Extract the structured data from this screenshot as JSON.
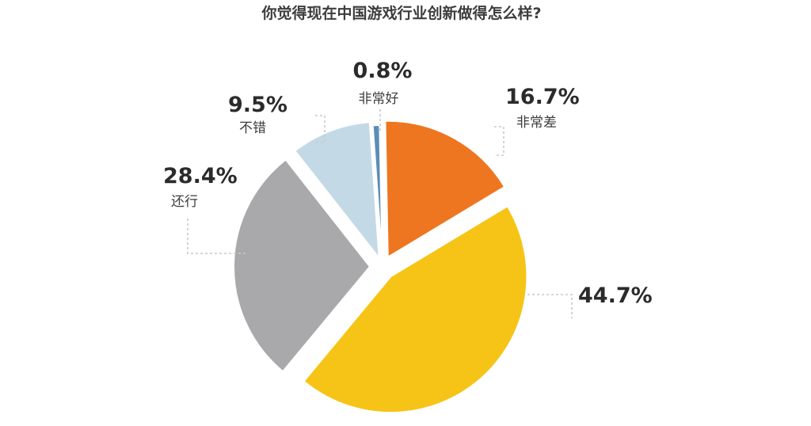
{
  "chart_data": {
    "type": "pie",
    "title": "你觉得现在中国游戏行业创新做得怎么样?",
    "slices": [
      {
        "label": "非常好",
        "value": 0.8,
        "value_label": "0.8%",
        "color": "#5b8db8"
      },
      {
        "label": "非常差",
        "value": 16.7,
        "value_label": "16.7%",
        "color": "#ee7621"
      },
      {
        "label": "",
        "value": 44.7,
        "value_label": "44.7%",
        "color": "#f6c417"
      },
      {
        "label": "还行",
        "value": 28.4,
        "value_label": "28.4%",
        "color": "#a9a9ab"
      },
      {
        "label": "不错",
        "value": 9.5,
        "value_label": "9.5%",
        "color": "#c3d9e6"
      }
    ],
    "legend": "none",
    "exploded": true
  }
}
